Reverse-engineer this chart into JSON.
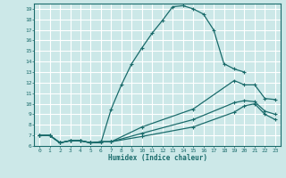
{
  "xlabel": "Humidex (Indice chaleur)",
  "xlim": [
    -0.5,
    23.5
  ],
  "ylim": [
    6,
    19.5
  ],
  "xticks": [
    0,
    1,
    2,
    3,
    4,
    5,
    6,
    7,
    8,
    9,
    10,
    11,
    12,
    13,
    14,
    15,
    16,
    17,
    18,
    19,
    20,
    21,
    22,
    23
  ],
  "yticks": [
    6,
    7,
    8,
    9,
    10,
    11,
    12,
    13,
    14,
    15,
    16,
    17,
    18,
    19
  ],
  "background_color": "#cce8e8",
  "line_color": "#1a6b6b",
  "grid_color": "#ffffff",
  "curves": [
    {
      "x": [
        0,
        1,
        2,
        3,
        4,
        5,
        6,
        7,
        8,
        9,
        10,
        11,
        12,
        13,
        14,
        15,
        16,
        17,
        18,
        19,
        20
      ],
      "y": [
        7.0,
        7.0,
        6.3,
        6.5,
        6.5,
        6.3,
        6.3,
        9.5,
        11.8,
        13.8,
        15.3,
        16.7,
        17.9,
        19.2,
        19.3,
        19.0,
        18.5,
        17.0,
        13.8,
        13.3,
        13.0
      ]
    },
    {
      "x": [
        0,
        1,
        2,
        3,
        4,
        5,
        6,
        7,
        10,
        15,
        19,
        20,
        21,
        22,
        23
      ],
      "y": [
        7.0,
        7.0,
        6.3,
        6.5,
        6.5,
        6.3,
        6.4,
        6.4,
        7.8,
        9.5,
        12.2,
        11.8,
        11.8,
        10.5,
        10.4
      ]
    },
    {
      "x": [
        0,
        1,
        2,
        3,
        4,
        5,
        6,
        7,
        10,
        15,
        19,
        20,
        21,
        22,
        23
      ],
      "y": [
        7.0,
        7.0,
        6.3,
        6.5,
        6.5,
        6.3,
        6.4,
        6.4,
        7.2,
        8.5,
        10.1,
        10.3,
        10.2,
        9.3,
        9.0
      ]
    },
    {
      "x": [
        0,
        1,
        2,
        3,
        4,
        5,
        6,
        7,
        10,
        15,
        19,
        20,
        21,
        22,
        23
      ],
      "y": [
        7.0,
        7.0,
        6.3,
        6.5,
        6.5,
        6.3,
        6.4,
        6.4,
        6.9,
        7.8,
        9.2,
        9.8,
        10.0,
        9.0,
        8.5
      ]
    }
  ]
}
